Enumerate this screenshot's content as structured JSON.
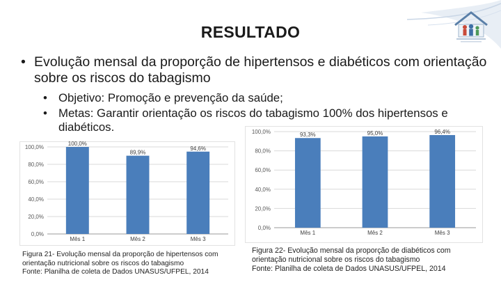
{
  "slide": {
    "title": "RESULTADO",
    "bullet1": "Evolução mensal da proporção de hipertensos e diabéticos com orientação sobre os riscos do tabagismo",
    "bullet2": "Objetivo: Promoção e prevenção da saúde;",
    "bullet3": "Metas: Garantir orientação os riscos do tabagismo 100% dos hipertensos e diabéticos.",
    "bullet_symbol": "•"
  },
  "captions": {
    "left": {
      "line1": "Figura 21- Evolução mensal da proporção de hipertensos com",
      "line2": "orientação nutricional sobre os riscos do tabagismo",
      "line3": "Fonte: Planilha de coleta de Dados UNASUS/UFPEL, 2014"
    },
    "right": {
      "line1": "Figura 22- Evolução mensal da proporção de diabéticos com",
      "line2": "orientação nutricional sobre os riscos do tabagismo",
      "line3": "Fonte: Planilha de coleta de Dados UNASUS/UFPEL, 2014"
    }
  },
  "chart_data": [
    {
      "type": "bar",
      "categories": [
        "Mês 1",
        "Mês 2",
        "Mês 3"
      ],
      "values": [
        100.0,
        89.9,
        94.6
      ],
      "data_labels": [
        "100,0%",
        "89,9%",
        "94,6%"
      ],
      "yticks": [
        "0,0%",
        "20,0%",
        "40,0%",
        "60,0%",
        "80,0%",
        "100,0%"
      ],
      "ylim": [
        0,
        100
      ],
      "grid": true,
      "bar_color": "#4a7ebb"
    },
    {
      "type": "bar",
      "categories": [
        "Mês 1",
        "Mês 2",
        "Mês 3"
      ],
      "values": [
        93.3,
        95.0,
        96.4
      ],
      "data_labels": [
        "93,3%",
        "95,0%",
        "96,4%"
      ],
      "yticks": [
        "0,0%",
        "20,0%",
        "40,0%",
        "60,0%",
        "80,0%",
        "100,0%"
      ],
      "ylim": [
        0,
        100
      ],
      "grid": true,
      "bar_color": "#4a7ebb"
    }
  ]
}
